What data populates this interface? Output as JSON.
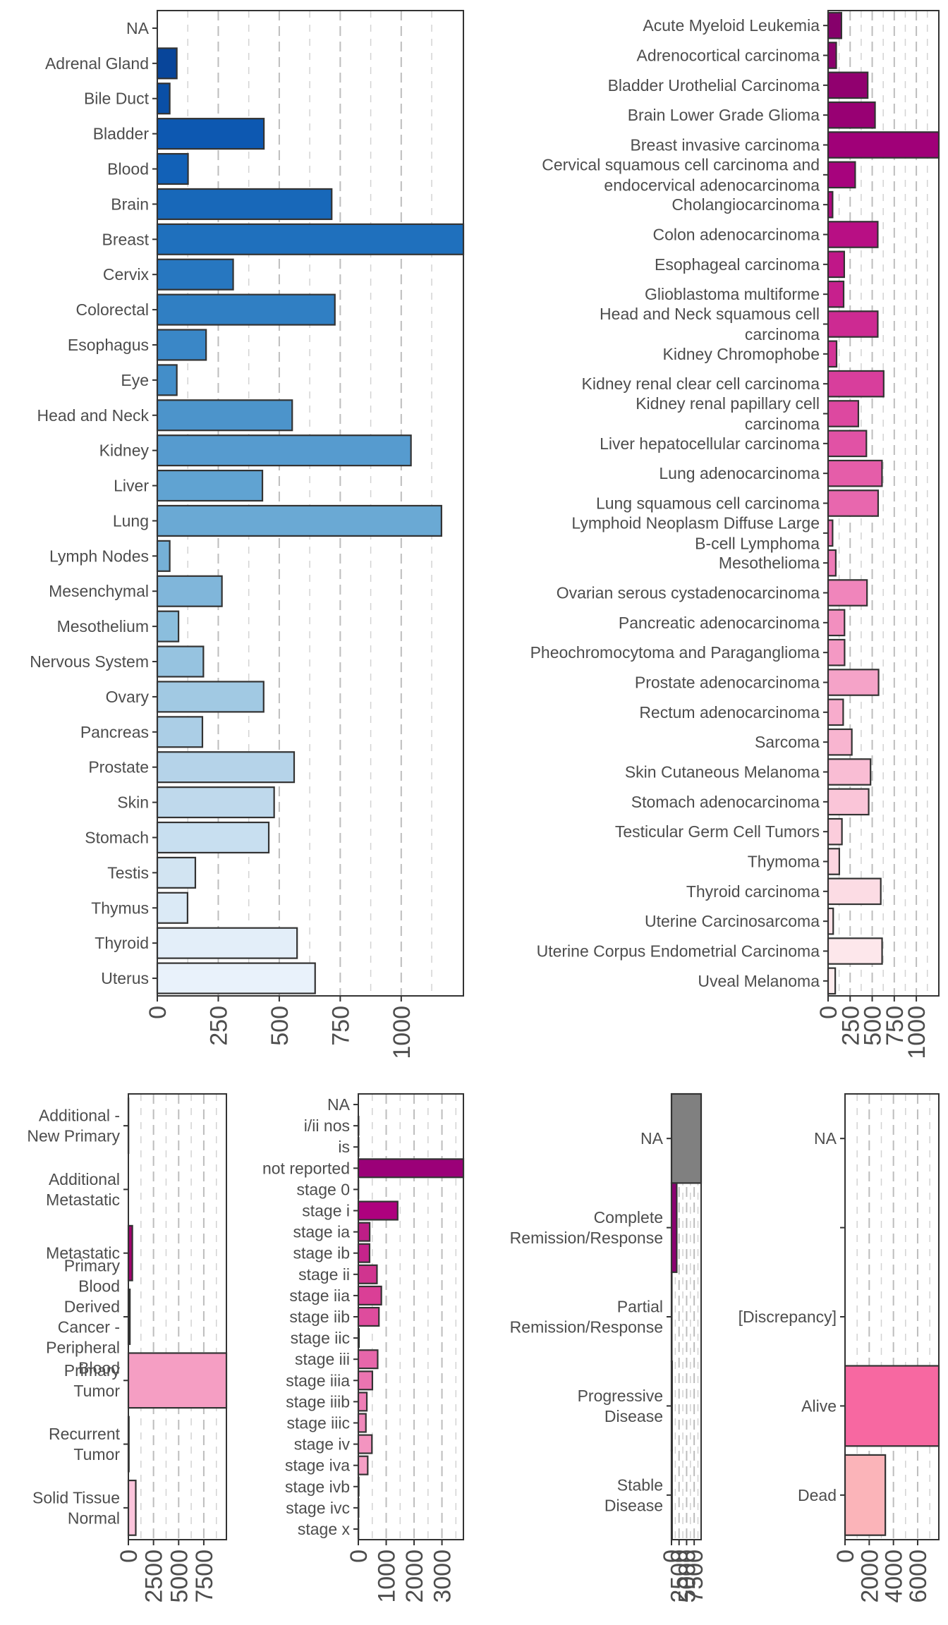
{
  "chart_data": [
    {
      "id": "tissue",
      "type": "bar",
      "orientation": "horizontal",
      "categories": [
        "NA",
        "Adrenal Gland",
        "Bile Duct",
        "Bladder",
        "Blood",
        "Brain",
        "Breast",
        "Cervix",
        "Colorectal",
        "Esophagus",
        "Eye",
        "Head and Neck",
        "Kidney",
        "Liver",
        "Lung",
        "Lymph Nodes",
        "Mesenchymal",
        "Mesothelium",
        "Nervous System",
        "Ovary",
        "Pancreas",
        "Prostate",
        "Skin",
        "Stomach",
        "Testis",
        "Thymus",
        "Thyroid",
        "Uterus"
      ],
      "values": [
        0,
        80,
        51,
        437,
        126,
        715,
        1255,
        311,
        728,
        200,
        80,
        553,
        1040,
        431,
        1165,
        51,
        265,
        87,
        189,
        436,
        185,
        561,
        479,
        457,
        156,
        124,
        573,
        647
      ],
      "xlim": [
        0,
        1255
      ],
      "xticks": [
        0,
        250,
        500,
        750,
        1000
      ],
      "grid": true,
      "colors": [
        "#08306b",
        "#08459a",
        "#0a4fa6",
        "#0d58b1",
        "#1261b7",
        "#1868b9",
        "#1f70bd",
        "#2777c0",
        "#307fc3",
        "#3a87c7",
        "#438ec9",
        "#4c94cb",
        "#569bcf",
        "#60a3d2",
        "#6aa9d4",
        "#75b0d7",
        "#80b6da",
        "#8bbedd",
        "#96c3e0",
        "#a1c9e3",
        "#abcee6",
        "#b5d3e9",
        "#bfd9ec",
        "#c8dff0",
        "#d2e4f2",
        "#dbeaf6",
        "#e3eef9",
        "#e9f2fb"
      ]
    },
    {
      "id": "project",
      "type": "bar",
      "orientation": "horizontal",
      "categories": [
        "Acute Myeloid Leukemia",
        "Adrenocortical carcinoma",
        "Bladder Urothelial Carcinoma",
        "Brain Lower Grade Glioma",
        "Breast invasive carcinoma",
        "Cervical squamous cell carcinoma and endocervical adenocarcinoma",
        "Cholangiocarcinoma",
        "Colon adenocarcinoma",
        "Esophageal carcinoma",
        "Glioblastoma multiforme",
        "Head and Neck squamous cell carcinoma",
        "Kidney Chromophobe",
        "Kidney renal clear cell carcinoma",
        "Kidney renal papillary cell carcinoma",
        "Liver hepatocellular carcinoma",
        "Lung adenocarcinoma",
        "Lung squamous cell carcinoma",
        "Lymphoid Neoplasm Diffuse Large B-cell Lymphoma",
        "Mesothelioma",
        "Ovarian serous cystadenocarcinoma",
        "Pancreatic adenocarcinoma",
        "Pheochromocytoma and Paraganglioma",
        "Prostate adenocarcinoma",
        "Rectum adenocarcinoma",
        "Sarcoma",
        "Skin Cutaneous Melanoma",
        "Stomach adenocarcinoma",
        "Testicular Germ Cell Tumors",
        "Thymoma",
        "Thyroid carcinoma",
        "Uterine Carcinosarcoma",
        "Uterine Corpus Endometrial Carcinoma",
        "Uveal Melanoma"
      ],
      "label_lines": [
        [
          "Acute Myeloid Leukemia"
        ],
        [
          "Adrenocortical carcinoma"
        ],
        [
          "Bladder Urothelial Carcinoma"
        ],
        [
          "Brain Lower Grade Glioma"
        ],
        [
          "Breast invasive carcinoma"
        ],
        [
          "Cervical squamous cell carcinoma and",
          "endocervical adenocarcinoma"
        ],
        [
          "Cholangiocarcinoma"
        ],
        [
          "Colon adenocarcinoma"
        ],
        [
          "Esophageal carcinoma"
        ],
        [
          "Glioblastoma multiforme"
        ],
        [
          "Head and Neck squamous cell",
          "carcinoma"
        ],
        [
          "Kidney Chromophobe"
        ],
        [
          "Kidney renal clear cell carcinoma"
        ],
        [
          "Kidney renal papillary cell",
          "carcinoma"
        ],
        [
          "Liver hepatocellular carcinoma"
        ],
        [
          "Lung adenocarcinoma"
        ],
        [
          "Lung squamous cell carcinoma"
        ],
        [
          "Lymphoid Neoplasm Diffuse Large",
          "B-cell Lymphoma"
        ],
        [
          "Mesothelioma"
        ],
        [
          "Ovarian serous cystadenocarcinoma"
        ],
        [
          "Pancreatic adenocarcinoma"
        ],
        [
          "Pheochromocytoma and Paraganglioma"
        ],
        [
          "Prostate adenocarcinoma"
        ],
        [
          "Rectum adenocarcinoma"
        ],
        [
          "Sarcoma"
        ],
        [
          "Skin Cutaneous Melanoma"
        ],
        [
          "Stomach adenocarcinoma"
        ],
        [
          "Testicular Germ Cell Tumors"
        ],
        [
          "Thymoma"
        ],
        [
          "Thyroid carcinoma"
        ],
        [
          "Uterine Carcinosarcoma"
        ],
        [
          "Uterine Corpus Endometrial Carcinoma"
        ],
        [
          "Uveal Melanoma"
        ]
      ],
      "values": [
        151,
        92,
        449,
        532,
        1255,
        307,
        51,
        563,
        183,
        176,
        563,
        96,
        630,
        343,
        434,
        611,
        567,
        51,
        87,
        441,
        186,
        187,
        572,
        171,
        269,
        481,
        460,
        157,
        127,
        597,
        58,
        612,
        81
      ],
      "xlim": [
        0,
        1255
      ],
      "xticks": [
        0,
        250,
        500,
        750,
        1000
      ],
      "grid": true,
      "colors": [
        "#86006b",
        "#8b006d",
        "#91006f",
        "#980073",
        "#a00078",
        "#a7037d",
        "#b00880",
        "#b80f84",
        "#c01788",
        "#c7208d",
        "#cd2a92",
        "#d33497",
        "#d83e9c",
        "#dd48a0",
        "#e152a5",
        "#e55da9",
        "#e867ae",
        "#eb71b2",
        "#ee7bb7",
        "#f085bb",
        "#f28fbf",
        "#f499c4",
        "#f5a3c8",
        "#f7accc",
        "#f8b5d0",
        "#f9bdd4",
        "#fac5d8",
        "#fbcddc",
        "#fcd5e0",
        "#fcdce4",
        "#fde2e8",
        "#fde7eb",
        "#fdecee"
      ]
    },
    {
      "id": "sample_type",
      "type": "bar",
      "orientation": "horizontal",
      "categories": [
        "Additional - New Primary",
        "Additional Metastatic",
        "Metastatic",
        "Primary Blood Derived Cancer - Peripheral Blood",
        "Primary Tumor",
        "Recurrent Tumor",
        "Solid Tissue Normal"
      ],
      "label_lines": [
        [
          "Additional -",
          "New Primary"
        ],
        [
          "Additional",
          "Metastatic"
        ],
        [
          "Metastatic"
        ],
        [
          "Primary",
          "Blood",
          "Derived",
          "Cancer -",
          "Peripheral",
          "Blood"
        ],
        [
          "Primary",
          "Tumor"
        ],
        [
          "Recurrent",
          "Tumor"
        ],
        [
          "Solid Tissue",
          "Normal"
        ]
      ],
      "values": [
        11,
        1,
        395,
        151,
        9750,
        50,
        736
      ],
      "xlim": [
        0,
        9750
      ],
      "xticks": [
        0,
        2500,
        5000,
        7500
      ],
      "grid": true,
      "colors": [
        "#a1006e",
        "#a1006e",
        "#a1006e",
        "#a1006e",
        "#f59ec3",
        "#fbc4db",
        "#fbc4db"
      ]
    },
    {
      "id": "tumor_stage",
      "type": "bar",
      "orientation": "horizontal",
      "categories": [
        "NA",
        "i/ii nos",
        "is",
        "not reported",
        "stage 0",
        "stage i",
        "stage ia",
        "stage ib",
        "stage ii",
        "stage iia",
        "stage iib",
        "stage iic",
        "stage iii",
        "stage iiia",
        "stage iiib",
        "stage iiic",
        "stage iv",
        "stage iva",
        "stage ivb",
        "stage ivc",
        "stage x"
      ],
      "values": [
        0,
        10,
        10,
        3770,
        5,
        1411,
        407,
        403,
        669,
        826,
        739,
        25,
        694,
        504,
        305,
        272,
        488,
        337,
        15,
        10,
        5
      ],
      "xlim": [
        0,
        3770
      ],
      "xticks": [
        0,
        1000,
        2000,
        3000
      ],
      "grid": true,
      "colors": [
        "#7a0177",
        "#7a0177",
        "#7a0177",
        "#9b0078",
        "#a4027a",
        "#ae017e",
        "#be1e87",
        "#c5248b",
        "#d0348f",
        "#da3f96",
        "#de4c9d",
        "#e35ba5",
        "#e766aa",
        "#eb74b1",
        "#ee7eb6",
        "#f089bb",
        "#f394c0",
        "#f59fc5",
        "#f7a9ca",
        "#f8b3ce",
        "#f9bdd3"
      ]
    },
    {
      "id": "treatment_response",
      "type": "bar",
      "orientation": "horizontal",
      "categories": [
        "NA",
        "Complete Remission/Response",
        "Partial Remission/Response",
        "Progressive Disease",
        "Stable Disease"
      ],
      "label_lines": [
        [
          "NA"
        ],
        [
          "Complete",
          "Remission/Response"
        ],
        [
          "Partial",
          "Remission/Response"
        ],
        [
          "Progressive",
          "Disease"
        ],
        [
          "Stable",
          "Disease"
        ]
      ],
      "values": [
        9800,
        1730,
        106,
        195,
        190
      ],
      "xlim": [
        0,
        9800
      ],
      "xticks": [
        0,
        2500,
        5000,
        7500
      ],
      "xtick_labels": [
        "0",
        "2500",
        "5000",
        "7500"
      ],
      "grid": true,
      "colors": [
        "#808080",
        "#8d0072",
        "#c51b8a",
        "#f768a1",
        "#fbb4b9"
      ]
    },
    {
      "id": "vital_status",
      "type": "bar",
      "orientation": "horizontal",
      "categories": [
        "NA",
        "",
        "[Discrepancy]",
        "Alive",
        "Dead"
      ],
      "values": [
        0,
        0,
        5,
        7750,
        3330
      ],
      "xlim": [
        0,
        7750
      ],
      "xticks": [
        0,
        2000,
        4000,
        6000
      ],
      "grid": true,
      "colors": [
        "#fbb4b9",
        "#fbb4b9",
        "#fbb4b9",
        "#f768a1",
        "#fbb4b9"
      ]
    }
  ]
}
